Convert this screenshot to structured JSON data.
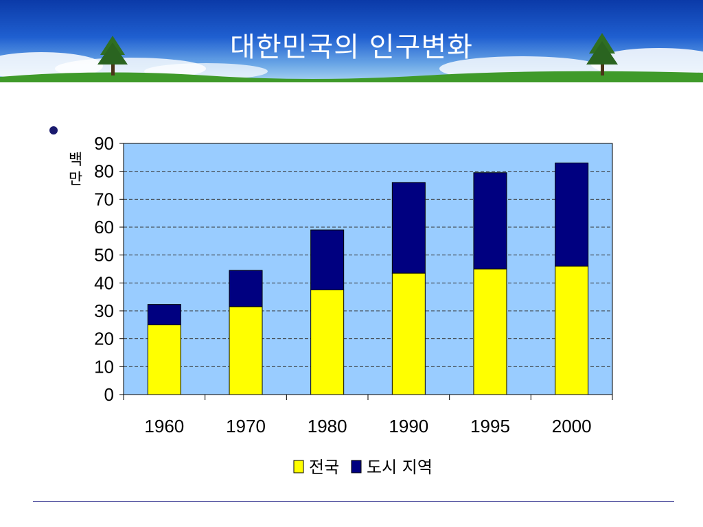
{
  "slide": {
    "title": "대한민국의 인구변화"
  },
  "colors": {
    "plot_bg": "#99ccff",
    "national": "#ffff00",
    "urban": "#000080",
    "banner_top": "#0b3aa8",
    "grass": "#3f9a2a"
  },
  "chart_data": {
    "type": "bar",
    "stacked": true,
    "ylabel": "백만",
    "categories": [
      "1960",
      "1970",
      "1980",
      "1990",
      "1995",
      "2000"
    ],
    "series": [
      {
        "name": "전국",
        "values": [
          25,
          31.5,
          37.5,
          43.5,
          45,
          46
        ]
      },
      {
        "name": "도시 지역",
        "values": [
          7.3,
          13,
          21.5,
          32.5,
          34.5,
          37
        ]
      }
    ],
    "ylim": [
      0,
      90
    ],
    "yticks": [
      "0",
      "10",
      "20",
      "30",
      "40",
      "50",
      "60",
      "70",
      "80",
      "90"
    ],
    "grid": true,
    "legend_position": "bottom"
  }
}
